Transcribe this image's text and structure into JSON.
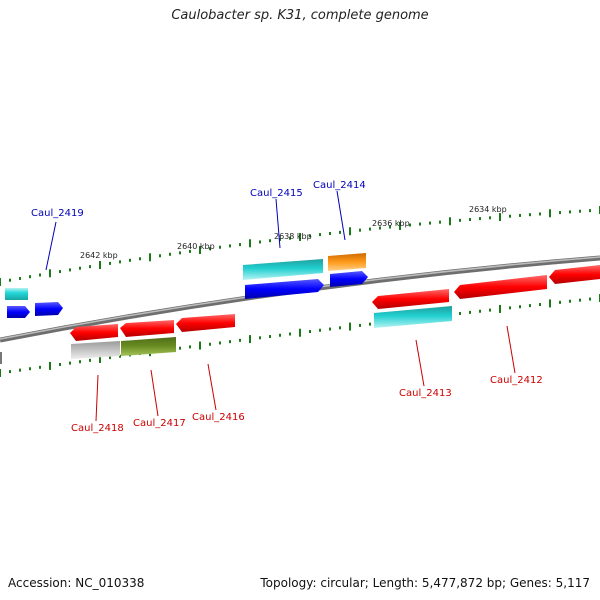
{
  "title": "Caulobacter sp. K31, complete genome",
  "footer": {
    "accession": "Accession: NC_010338",
    "summary": "Topology: circular; Length: 5,477,872 bp; Genes: 5,117"
  },
  "tick_labels": [
    "2642 kbp",
    "2640 kbp",
    "2638 kbp",
    "2636 kbp",
    "2634 kbp"
  ],
  "gene_labels": [
    "Caul_2419",
    "Caul_2415",
    "Caul_2414",
    "Caul_2418",
    "Caul_2417",
    "Caul_2416",
    "Caul_2413",
    "Caul_2412"
  ],
  "colors": {
    "backbone": "#7a7a7a",
    "tick": "#1a7a1a",
    "forward_label": "#0000bb",
    "reverse_label": "#cc0000",
    "red": "#ff0000",
    "blue": "#0000ff",
    "cyan": "#20c0c0",
    "orange": "#ff8c00",
    "olive": "#6b8e23",
    "grey": "#bbbbbb"
  }
}
